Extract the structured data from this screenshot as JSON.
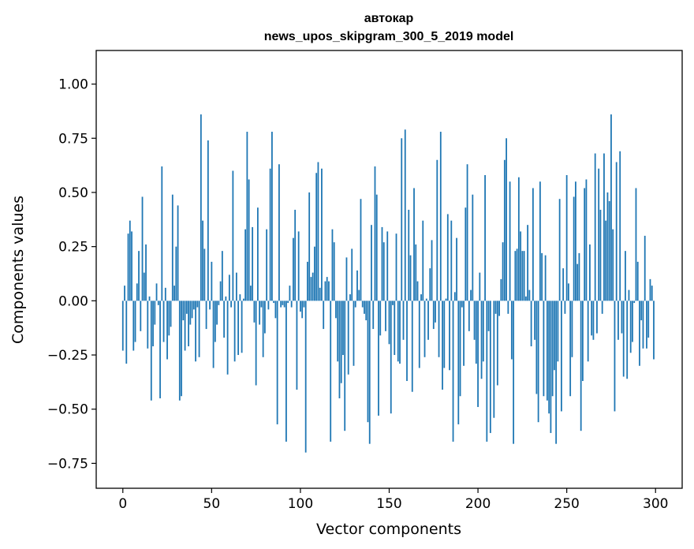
{
  "chart_data": {
    "type": "bar",
    "title_line1": "автокар",
    "title_line2": "news_upos_skipgram_300_5_2019 model",
    "xlabel": "Vector components",
    "ylabel": "Components values",
    "xlim": [
      -15,
      315
    ],
    "ylim": [
      -0.865,
      1.155
    ],
    "xticks": [
      0,
      50,
      100,
      150,
      200,
      250,
      300
    ],
    "xtick_labels": [
      "0",
      "50",
      "100",
      "150",
      "200",
      "250",
      "300"
    ],
    "yticks": [
      1.0,
      0.75,
      0.5,
      0.25,
      0.0,
      -0.25,
      -0.5,
      -0.75
    ],
    "ytick_labels": [
      "1.00",
      "0.75",
      "0.50",
      "0.25",
      "0.00",
      "−0.25",
      "−0.50",
      "−0.75"
    ],
    "bar_color": "#1f77b4",
    "grid": false,
    "values": [
      -0.23,
      0.07,
      -0.29,
      0.31,
      0.37,
      0.32,
      -0.23,
      -0.19,
      0.08,
      0.23,
      -0.14,
      0.48,
      0.13,
      0.26,
      -0.22,
      0.02,
      -0.46,
      -0.21,
      -0.11,
      0.08,
      -0.02,
      -0.45,
      0.62,
      -0.19,
      0.06,
      -0.27,
      -0.16,
      -0.12,
      0.49,
      0.07,
      0.25,
      0.44,
      -0.46,
      -0.44,
      -0.09,
      -0.23,
      -0.06,
      -0.21,
      -0.11,
      -0.08,
      -0.04,
      -0.28,
      -0.03,
      -0.26,
      0.86,
      0.37,
      0.24,
      -0.13,
      0.74,
      -0.04,
      0.18,
      -0.31,
      -0.19,
      -0.11,
      -0.02,
      0.09,
      0.23,
      -0.17,
      0.02,
      -0.34,
      0.12,
      -0.03,
      0.6,
      -0.28,
      0.13,
      -0.25,
      0.03,
      -0.24,
      0.01,
      0.33,
      0.78,
      0.56,
      0.07,
      0.34,
      -0.1,
      -0.39,
      0.43,
      -0.11,
      -0.03,
      -0.26,
      -0.15,
      0.33,
      -0.04,
      0.61,
      0.78,
      -0.01,
      -0.08,
      -0.57,
      0.63,
      -0.03,
      -0.02,
      -0.03,
      -0.65,
      -0.01,
      0.07,
      -0.03,
      0.29,
      0.42,
      -0.41,
      0.32,
      -0.05,
      -0.08,
      -0.03,
      -0.7,
      0.18,
      0.5,
      0.11,
      0.13,
      0.25,
      0.59,
      0.64,
      0.06,
      0.61,
      -0.13,
      0.09,
      0.11,
      0.09,
      -0.65,
      0.33,
      0.27,
      -0.08,
      -0.28,
      -0.45,
      -0.38,
      -0.25,
      -0.6,
      0.2,
      -0.34,
      0.03,
      0.24,
      -0.3,
      -0.03,
      0.14,
      0.05,
      0.47,
      -0.03,
      -0.06,
      -0.09,
      -0.56,
      -0.66,
      0.35,
      -0.13,
      0.62,
      0.49,
      -0.53,
      -0.16,
      0.34,
      0.27,
      -0.14,
      0.32,
      -0.2,
      -0.52,
      -0.02,
      -0.25,
      0.31,
      -0.28,
      -0.29,
      0.75,
      -0.18,
      0.79,
      -0.37,
      0.42,
      0.21,
      -0.42,
      0.52,
      0.26,
      0.09,
      -0.31,
      0.03,
      0.37,
      -0.26,
      0.01,
      -0.18,
      0.15,
      0.28,
      -0.13,
      -0.1,
      0.65,
      -0.26,
      0.78,
      -0.41,
      -0.31,
      0.01,
      0.4,
      -0.32,
      0.37,
      -0.65,
      0.04,
      0.29,
      -0.57,
      -0.44,
      -0.03,
      -0.3,
      0.43,
      0.63,
      -0.14,
      0.05,
      0.49,
      -0.18,
      -0.29,
      -0.49,
      0.13,
      -0.36,
      -0.28,
      0.58,
      -0.65,
      -0.14,
      -0.61,
      0.0,
      -0.54,
      -0.06,
      -0.39,
      -0.07,
      0.1,
      0.27,
      0.65,
      0.75,
      -0.06,
      0.55,
      -0.27,
      -0.66,
      0.23,
      0.24,
      0.57,
      0.32,
      0.23,
      0.23,
      0.02,
      0.35,
      0.05,
      -0.21,
      0.52,
      -0.18,
      -0.43,
      -0.56,
      0.55,
      0.22,
      -0.44,
      0.21,
      -0.46,
      -0.52,
      -0.61,
      -0.44,
      -0.32,
      -0.66,
      -0.28,
      0.47,
      -0.51,
      0.15,
      -0.06,
      0.58,
      0.08,
      -0.44,
      -0.26,
      0.48,
      0.55,
      0.17,
      0.22,
      -0.6,
      -0.37,
      0.52,
      0.56,
      -0.28,
      0.26,
      -0.16,
      -0.18,
      0.68,
      -0.15,
      0.61,
      0.42,
      -0.06,
      0.68,
      0.37,
      0.5,
      0.46,
      0.86,
      0.33,
      -0.51,
      0.64,
      -0.18,
      0.69,
      -0.15,
      -0.35,
      0.23,
      -0.36,
      0.05,
      -0.24,
      -0.19,
      -0.01,
      0.52,
      0.18,
      -0.3,
      -0.09,
      -0.22,
      0.3,
      -0.22,
      -0.17,
      0.1,
      0.07,
      -0.27
    ]
  }
}
